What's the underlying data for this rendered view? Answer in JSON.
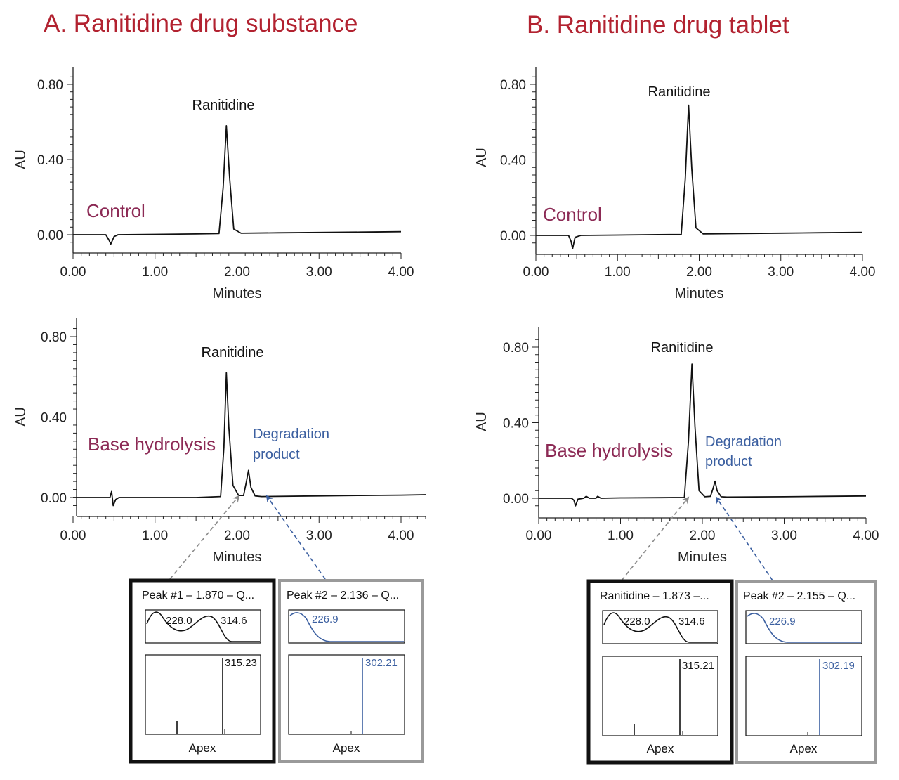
{
  "colors": {
    "title": "#b22230",
    "condition": "#8c2a55",
    "degradation": "#3b5fa0",
    "trace": "#111111",
    "inset_primary_border": "#111111",
    "inset_secondary_border": "#9a9a9a",
    "arrow_primary": "#8a8a8a",
    "arrow_secondary": "#3b5fa0"
  },
  "panels": [
    {
      "title": "A. Ranitidine drug substance",
      "charts": [
        {
          "condition_label": "Control",
          "peak_label": "Ranitidine",
          "degradation_label": [],
          "ylabel": "AU",
          "xlabel": "Minutes",
          "x_ticks": [
            "0.00",
            "1.00",
            "2.00",
            "3.00",
            "4.00"
          ],
          "y_ticks": [
            "0.00",
            "0.40",
            "0.80"
          ]
        },
        {
          "condition_label": "Base hydrolysis",
          "peak_label": "Ranitidine",
          "degradation_label": [
            "Degradation",
            "product"
          ],
          "ylabel": "AU",
          "xlabel": "Minutes",
          "x_ticks": [
            "0.00",
            "1.00",
            "2.00",
            "3.00",
            "4.00"
          ],
          "y_ticks": [
            "0.00",
            "0.40",
            "0.80"
          ]
        }
      ],
      "insets": [
        {
          "title": "Peak #1 – 1.870 – Q...",
          "uv_values": [
            "228.0",
            "314.6"
          ],
          "ms_value": "315.23",
          "caption": "Apex"
        },
        {
          "title": "Peak #2 – 2.136 – Q...",
          "uv_values": [
            "226.9"
          ],
          "ms_value": "302.21",
          "caption": "Apex"
        }
      ]
    },
    {
      "title": "B. Ranitidine drug tablet",
      "charts": [
        {
          "condition_label": "Control",
          "peak_label": "Ranitidine",
          "degradation_label": [],
          "ylabel": "AU",
          "xlabel": "Minutes",
          "x_ticks": [
            "0.00",
            "1.00",
            "2.00",
            "3.00",
            "4.00"
          ],
          "y_ticks": [
            "0.00",
            "0.40",
            "0.80"
          ]
        },
        {
          "condition_label": "Base hydrolysis",
          "peak_label": "Ranitidine",
          "degradation_label": [
            "Degradation",
            "product"
          ],
          "ylabel": "AU",
          "xlabel": "Minutes",
          "x_ticks": [
            "0.00",
            "1.00",
            "2.00",
            "3.00",
            "4.00"
          ],
          "y_ticks": [
            "0.00",
            "0.40",
            "0.80"
          ]
        }
      ],
      "insets": [
        {
          "title": "Ranitidine – 1.873 –...",
          "uv_values": [
            "228.0",
            "314.6"
          ],
          "ms_value": "315.21",
          "caption": "Apex"
        },
        {
          "title": "Peak #2 – 2.155 – Q...",
          "uv_values": [
            "226.9"
          ],
          "ms_value": "302.19",
          "caption": "Apex"
        }
      ]
    }
  ],
  "chart_data": [
    {
      "type": "line",
      "title": "A. Ranitidine drug substance",
      "annotation": "Control",
      "xlabel": "Minutes",
      "ylabel": "AU",
      "xlim": [
        0,
        4
      ],
      "ylim": [
        -0.05,
        0.85
      ],
      "x_ticks": [
        0,
        1,
        2,
        3,
        4
      ],
      "y_ticks": [
        0,
        0.4,
        0.8
      ],
      "series": [
        {
          "x": [
            0,
            0.4,
            0.44,
            0.46,
            0.5,
            0.55,
            1.0,
            1.5,
            1.78,
            1.83,
            1.87,
            1.91,
            1.96,
            2.05,
            2.5,
            3.0,
            3.5,
            4.0
          ],
          "y": [
            0,
            0,
            -0.03,
            -0.05,
            -0.01,
            0,
            0.002,
            0.004,
            0.006,
            0.25,
            0.58,
            0.3,
            0.03,
            0.008,
            0.01,
            0.012,
            0.014,
            0.016
          ]
        }
      ],
      "peaks": [
        {
          "label": "Ranitidine",
          "x": 1.87,
          "y": 0.58
        }
      ]
    },
    {
      "type": "line",
      "title": "A. Ranitidine drug substance",
      "annotation": "Base hydrolysis",
      "xlabel": "Minutes",
      "ylabel": "AU",
      "xlim": [
        0,
        4.3
      ],
      "ylim": [
        -0.05,
        0.85
      ],
      "x_ticks": [
        0,
        1,
        2,
        3,
        4
      ],
      "y_ticks": [
        0,
        0.4,
        0.8
      ],
      "series": [
        {
          "x": [
            0,
            0.45,
            0.47,
            0.49,
            0.52,
            0.56,
            0.75,
            1.0,
            1.5,
            1.8,
            1.84,
            1.87,
            1.9,
            1.95,
            2.02,
            2.08,
            2.11,
            2.14,
            2.17,
            2.22,
            2.3,
            3.0,
            3.5,
            4.0,
            4.3
          ],
          "y": [
            0,
            0,
            0.03,
            -0.04,
            -0.01,
            0,
            0,
            0,
            0,
            0.005,
            0.25,
            0.62,
            0.35,
            0.06,
            0.01,
            0.01,
            0.07,
            0.135,
            0.05,
            0.008,
            0.005,
            0.008,
            0.01,
            0.012,
            0.014
          ]
        }
      ],
      "peaks": [
        {
          "label": "Ranitidine",
          "x": 1.87,
          "y": 0.62
        },
        {
          "label": "Degradation product",
          "x": 2.136,
          "y": 0.135
        }
      ]
    },
    {
      "type": "line",
      "title": "B. Ranitidine drug tablet",
      "annotation": "Control",
      "xlabel": "Minutes",
      "ylabel": "AU",
      "xlim": [
        0,
        4
      ],
      "ylim": [
        -0.08,
        0.85
      ],
      "x_ticks": [
        0,
        1,
        2,
        3,
        4
      ],
      "y_ticks": [
        0,
        0.4,
        0.8
      ],
      "series": [
        {
          "x": [
            0,
            0.4,
            0.43,
            0.45,
            0.48,
            0.55,
            1.0,
            1.5,
            1.78,
            1.83,
            1.87,
            1.91,
            1.96,
            2.05,
            2.5,
            3.0,
            3.5,
            4.0
          ],
          "y": [
            0,
            0,
            -0.03,
            -0.07,
            -0.01,
            0,
            0.002,
            0.004,
            0.005,
            0.3,
            0.69,
            0.35,
            0.04,
            0.008,
            0.01,
            0.012,
            0.014,
            0.016
          ]
        }
      ],
      "peaks": [
        {
          "label": "Ranitidine",
          "x": 1.87,
          "y": 0.69
        }
      ]
    },
    {
      "type": "line",
      "title": "B. Ranitidine drug tablet",
      "annotation": "Base hydrolysis",
      "xlabel": "Minutes",
      "ylabel": "AU",
      "xlim": [
        0,
        4
      ],
      "ylim": [
        -0.07,
        0.85
      ],
      "x_ticks": [
        0,
        1,
        2,
        3,
        4
      ],
      "y_ticks": [
        0,
        0.4,
        0.8
      ],
      "series": [
        {
          "x": [
            0,
            0.4,
            0.43,
            0.45,
            0.48,
            0.55,
            0.58,
            0.62,
            0.7,
            0.72,
            0.76,
            1.0,
            1.5,
            1.78,
            1.83,
            1.873,
            1.91,
            1.96,
            2.03,
            2.1,
            2.13,
            2.155,
            2.18,
            2.23,
            2.3,
            3.0,
            3.5,
            4.0
          ],
          "y": [
            0,
            0,
            -0.01,
            -0.04,
            -0.005,
            0,
            0.01,
            0,
            0,
            0.01,
            0,
            0.002,
            0.003,
            0.004,
            0.3,
            0.71,
            0.38,
            0.04,
            0.008,
            0.01,
            0.05,
            0.09,
            0.04,
            0.008,
            0.006,
            0.008,
            0.01,
            0.012
          ]
        }
      ],
      "peaks": [
        {
          "label": "Ranitidine",
          "x": 1.873,
          "y": 0.71
        },
        {
          "label": "Degradation product",
          "x": 2.155,
          "y": 0.09
        }
      ]
    }
  ]
}
